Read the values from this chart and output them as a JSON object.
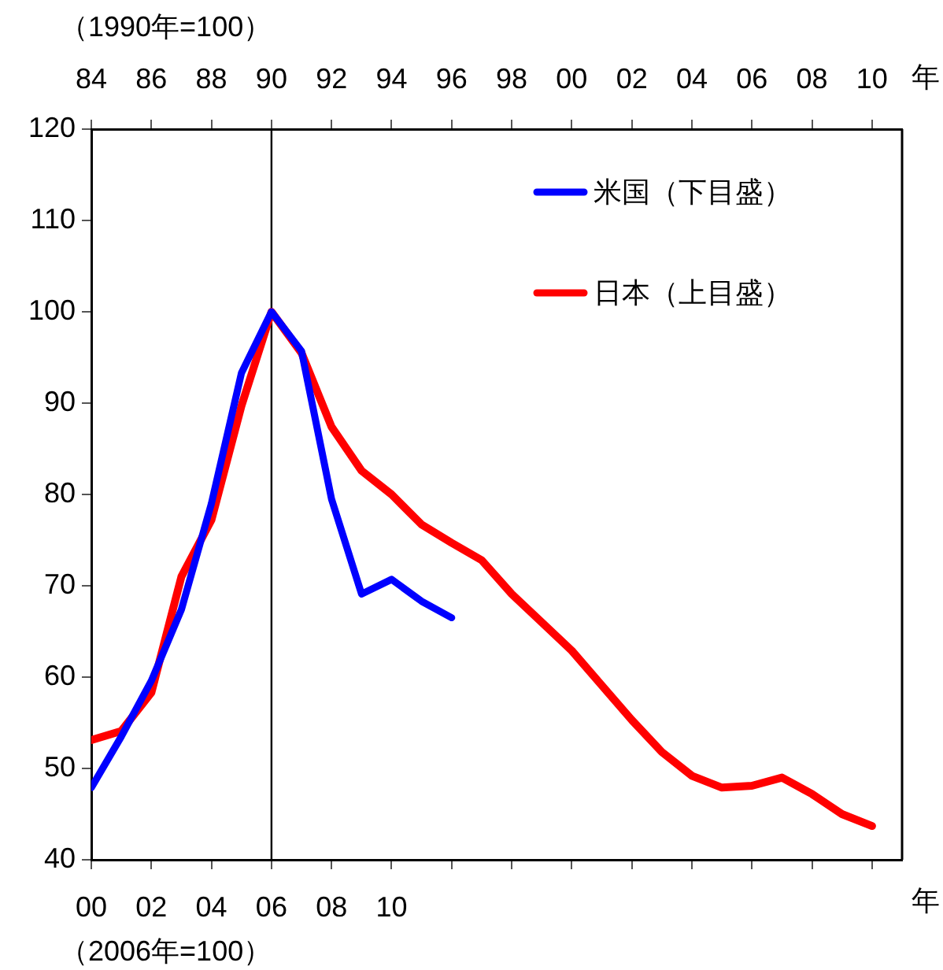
{
  "chart_data": {
    "type": "line",
    "annotations": [
      "（1990年=100）",
      "（2006年=100）"
    ],
    "xlabel": "年",
    "x2label": "年",
    "xlim": [
      2000,
      2027
    ],
    "xticks": [
      {
        "value": 2000,
        "label": "00"
      },
      {
        "value": 2002,
        "label": "02"
      },
      {
        "value": 2004,
        "label": "04"
      },
      {
        "value": 2006,
        "label": "06"
      },
      {
        "value": 2008,
        "label": "08"
      },
      {
        "value": 2010,
        "label": "10"
      },
      {
        "value": 2012,
        "label": null
      },
      {
        "value": 2014,
        "label": null
      },
      {
        "value": 2016,
        "label": null
      },
      {
        "value": 2018,
        "label": null
      },
      {
        "value": 2020,
        "label": null
      },
      {
        "value": 2022,
        "label": null
      },
      {
        "value": 2024,
        "label": null
      },
      {
        "value": 2026,
        "label": null
      }
    ],
    "x2lim": [
      1984,
      2011
    ],
    "x2ticks": [
      {
        "value": 1984,
        "label": "84"
      },
      {
        "value": 1986,
        "label": "86"
      },
      {
        "value": 1988,
        "label": "88"
      },
      {
        "value": 1990,
        "label": "90"
      },
      {
        "value": 1992,
        "label": "92"
      },
      {
        "value": 1994,
        "label": "94"
      },
      {
        "value": 1996,
        "label": "96"
      },
      {
        "value": 1998,
        "label": "98"
      },
      {
        "value": 2000,
        "label": "00"
      },
      {
        "value": 2002,
        "label": "02"
      },
      {
        "value": 2004,
        "label": "04"
      },
      {
        "value": 2006,
        "label": "06"
      },
      {
        "value": 2008,
        "label": "08"
      },
      {
        "value": 2010,
        "label": "10"
      }
    ],
    "ylim": [
      40,
      120
    ],
    "yticks": [
      40,
      50,
      60,
      70,
      80,
      90,
      100,
      110,
      120
    ],
    "grid": false,
    "legend": "top right",
    "marker": "none",
    "line_style": "solid",
    "ref_lines": [
      {
        "axis": "x",
        "value": 2006,
        "color": "#000000"
      }
    ],
    "series": [
      {
        "name": "米国（下目盛）",
        "color": "#0000ff",
        "x": [
          2000,
          2001,
          2002,
          2003,
          2004,
          2005,
          2006,
          2007,
          2008,
          2009,
          2010,
          2011,
          2012
        ],
        "values": [
          47.9,
          53.5,
          59.6,
          67.4,
          79,
          93.3,
          100,
          95.7,
          79.5,
          69.1,
          70.7,
          68.3,
          66.5
        ]
      },
      {
        "name": "日本（上目盛）",
        "color": "#ff0000",
        "axis": "x2",
        "x": [
          1984,
          1985,
          1986,
          1987,
          1988,
          1989,
          1990,
          1991,
          1992,
          1993,
          1994,
          1995,
          1996,
          1997,
          1998,
          1999,
          2000,
          2001,
          2002,
          2003,
          2004,
          2005,
          2006,
          2007,
          2008,
          2009,
          2010
        ],
        "values": [
          53.1,
          54.1,
          58.3,
          71,
          77.2,
          89.7,
          100,
          95.5,
          87.4,
          82.6,
          80,
          76.7,
          74.7,
          72.8,
          69.1,
          66,
          62.9,
          59.1,
          55.3,
          51.8,
          49.2,
          47.9,
          48.1,
          49,
          47.2,
          45,
          43.7
        ]
      }
    ]
  }
}
